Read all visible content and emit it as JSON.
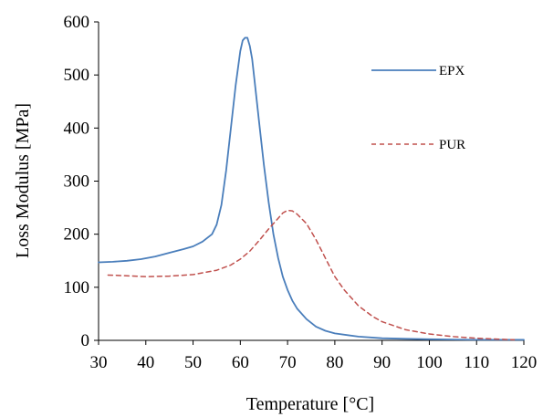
{
  "chart_data": {
    "type": "line",
    "title": "",
    "xlabel": "Temperature [°C]",
    "ylabel": "Loss Modulus [MPa]",
    "xlim": [
      30,
      120
    ],
    "ylim": [
      0,
      600
    ],
    "x_ticks": [
      30,
      40,
      50,
      60,
      70,
      80,
      90,
      100,
      110,
      120
    ],
    "y_ticks": [
      0,
      100,
      200,
      300,
      400,
      500,
      600
    ],
    "grid": false,
    "legend_position": "top-right",
    "series": [
      {
        "name": "EPX",
        "color": "#4a7ebb",
        "dash": "solid",
        "x": [
          30,
          33,
          36,
          39,
          42,
          45,
          48,
          50,
          52,
          54,
          55,
          56,
          57,
          58,
          59,
          60,
          60.5,
          61,
          61.5,
          62,
          62.5,
          63,
          64,
          65,
          66,
          67,
          68,
          69,
          70,
          71,
          72,
          74,
          76,
          78,
          80,
          85,
          90,
          95,
          100,
          105,
          110,
          115,
          120
        ],
        "y": [
          147,
          148,
          150,
          153,
          158,
          165,
          172,
          177,
          186,
          200,
          218,
          255,
          320,
          400,
          480,
          545,
          565,
          570,
          570,
          555,
          530,
          490,
          410,
          330,
          260,
          200,
          155,
          120,
          95,
          75,
          60,
          40,
          26,
          18,
          13,
          7,
          4,
          3,
          2,
          1.5,
          1,
          1,
          1
        ]
      },
      {
        "name": "PUR",
        "color": "#c0504d",
        "dash": "dashed",
        "x": [
          32,
          35,
          40,
          45,
          50,
          55,
          58,
          60,
          62,
          64,
          66,
          68,
          69,
          70,
          71,
          72,
          74,
          76,
          78,
          80,
          82,
          85,
          88,
          90,
          95,
          100,
          105,
          110,
          115,
          118
        ],
        "y": [
          123,
          122,
          120,
          121,
          124,
          132,
          142,
          153,
          168,
          188,
          210,
          230,
          240,
          245,
          244,
          238,
          220,
          190,
          155,
          120,
          95,
          65,
          45,
          35,
          20,
          12,
          7,
          4,
          2,
          1
        ]
      }
    ]
  }
}
